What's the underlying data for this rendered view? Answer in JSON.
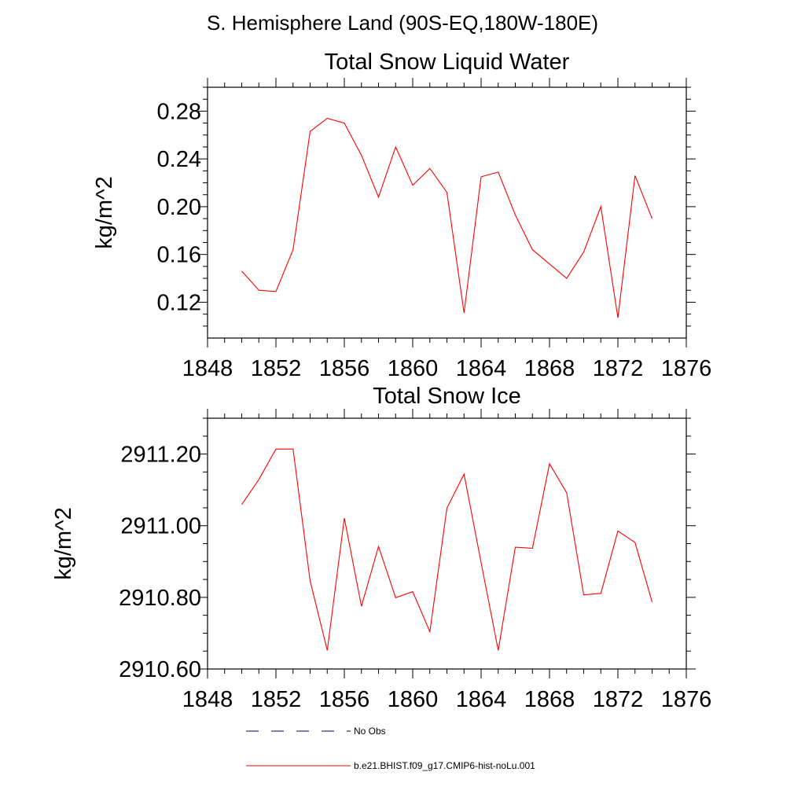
{
  "page": {
    "title": "S. Hemisphere Land (90S-EQ,180W-180E)"
  },
  "colors": {
    "model_series": "#ff0000",
    "obs_series": "#00004d",
    "axes": "#000000"
  },
  "chart_data": [
    {
      "type": "line",
      "title": "Total Snow Liquid Water",
      "ylabel": "kg/m^2",
      "xlabel": "",
      "xlim": [
        1848,
        1876
      ],
      "ylim": [
        0.09,
        0.3
      ],
      "xticks": [
        1848,
        1852,
        1856,
        1860,
        1864,
        1868,
        1872,
        1876
      ],
      "xtick_labels": [
        "1848",
        "1852",
        "1856",
        "1860",
        "1864",
        "1868",
        "1872",
        "1876"
      ],
      "yticks": [
        0.12,
        0.16,
        0.2,
        0.24,
        0.28
      ],
      "ytick_labels": [
        "0.12",
        "0.16",
        "0.20",
        "0.24",
        "0.28"
      ],
      "grid": false,
      "series": [
        {
          "name": "b.e21.BHIST.f09_g17.CMIP6-hist-noLu.001",
          "x": [
            1850,
            1851,
            1852,
            1853,
            1854,
            1855,
            1856,
            1857,
            1858,
            1859,
            1860,
            1861,
            1862,
            1863,
            1864,
            1865,
            1866,
            1867,
            1868,
            1869,
            1870,
            1871,
            1872,
            1873,
            1874
          ],
          "y": [
            0.146,
            0.13,
            0.129,
            0.164,
            0.263,
            0.274,
            0.27,
            0.243,
            0.208,
            0.25,
            0.218,
            0.232,
            0.212,
            0.111,
            0.225,
            0.229,
            0.193,
            0.164,
            0.152,
            0.14,
            0.162,
            0.2,
            0.107,
            0.226,
            0.19
          ]
        }
      ]
    },
    {
      "type": "line",
      "title": "Total Snow Ice",
      "ylabel": "kg/m^2",
      "xlabel": "",
      "xlim": [
        1848,
        1876
      ],
      "ylim": [
        2910.6,
        2911.3
      ],
      "xticks": [
        1848,
        1852,
        1856,
        1860,
        1864,
        1868,
        1872,
        1876
      ],
      "xtick_labels": [
        "1848",
        "1852",
        "1856",
        "1860",
        "1864",
        "1868",
        "1872",
        "1876"
      ],
      "yticks": [
        2910.6,
        2910.8,
        2911.0,
        2911.2
      ],
      "ytick_labels": [
        "2910.60",
        "2910.80",
        "2911.00",
        "2911.20"
      ],
      "grid": false,
      "series": [
        {
          "name": "b.e21.BHIST.f09_g17.CMIP6-hist-noLu.001",
          "x": [
            1850,
            1851,
            1852,
            1853,
            1854,
            1855,
            1856,
            1857,
            1858,
            1859,
            1860,
            1861,
            1862,
            1863,
            1864,
            1865,
            1866,
            1867,
            1868,
            1869,
            1870,
            1871,
            1872,
            1873,
            1874
          ],
          "y": [
            2911.059,
            2911.129,
            2911.214,
            2911.214,
            2910.846,
            2910.652,
            2911.021,
            2910.775,
            2910.942,
            2910.799,
            2910.816,
            2910.704,
            2911.049,
            2911.144,
            2910.897,
            2910.652,
            2910.94,
            2910.937,
            2911.173,
            2911.092,
            2910.807,
            2910.811,
            2910.985,
            2910.953,
            2910.787
          ]
        }
      ]
    }
  ],
  "legend": {
    "items": [
      {
        "label": "No Obs",
        "style": "dashed",
        "color": "#00004d"
      },
      {
        "label": "b.e21.BHIST.f09_g17.CMIP6-hist-noLu.001",
        "style": "solid",
        "color": "#ff0000"
      }
    ]
  }
}
